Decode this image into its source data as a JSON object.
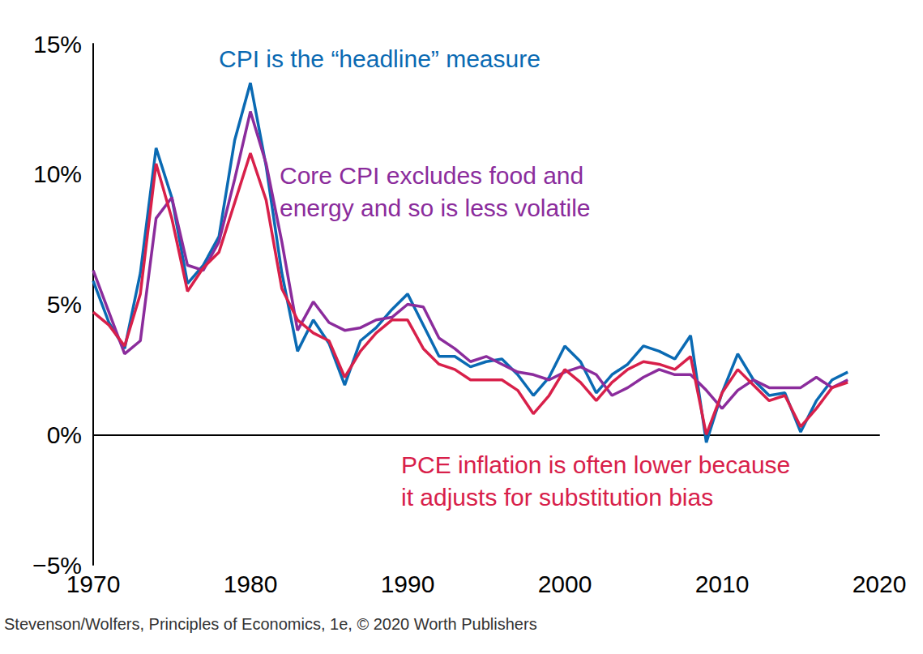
{
  "chart_data": {
    "type": "line",
    "x": [
      1970,
      1971,
      1972,
      1973,
      1974,
      1975,
      1976,
      1977,
      1978,
      1979,
      1980,
      1981,
      1982,
      1983,
      1984,
      1985,
      1986,
      1987,
      1988,
      1989,
      1990,
      1991,
      1992,
      1993,
      1994,
      1995,
      1996,
      1997,
      1998,
      1999,
      2000,
      2001,
      2002,
      2003,
      2004,
      2005,
      2006,
      2007,
      2008,
      2009,
      2010,
      2011,
      2012,
      2013,
      2014,
      2015,
      2016,
      2017,
      2018
    ],
    "series": [
      {
        "color": "#0a6ab3",
        "values": [
          5.9,
          4.3,
          3.3,
          6.2,
          11.0,
          9.1,
          5.8,
          6.5,
          7.6,
          11.3,
          13.5,
          10.3,
          6.2,
          3.2,
          4.4,
          3.5,
          1.9,
          3.6,
          4.1,
          4.8,
          5.4,
          4.2,
          3.0,
          3.0,
          2.6,
          2.8,
          2.9,
          2.3,
          1.5,
          2.2,
          3.4,
          2.8,
          1.6,
          2.3,
          2.7,
          3.4,
          3.2,
          2.9,
          3.8,
          -0.3,
          1.6,
          3.1,
          2.1,
          1.5,
          1.6,
          0.1,
          1.3,
          2.1,
          2.4
        ]
      },
      {
        "color": "#8b2c9c",
        "values": [
          6.3,
          4.7,
          3.1,
          3.6,
          8.3,
          9.1,
          6.5,
          6.3,
          7.4,
          9.8,
          12.4,
          10.4,
          7.4,
          4.0,
          5.1,
          4.3,
          4.0,
          4.1,
          4.4,
          4.5,
          5.0,
          4.9,
          3.7,
          3.3,
          2.8,
          3.0,
          2.7,
          2.4,
          2.3,
          2.1,
          2.4,
          2.6,
          2.3,
          1.5,
          1.8,
          2.2,
          2.5,
          2.3,
          2.3,
          1.7,
          1.0,
          1.7,
          2.1,
          1.8,
          1.8,
          1.8,
          2.2,
          1.8,
          2.1
        ]
      },
      {
        "color": "#d8204a",
        "values": [
          4.7,
          4.2,
          3.4,
          5.4,
          10.4,
          8.3,
          5.5,
          6.4,
          7.0,
          8.9,
          10.8,
          9.0,
          5.6,
          4.4,
          3.9,
          3.6,
          2.2,
          3.2,
          3.9,
          4.4,
          4.4,
          3.3,
          2.7,
          2.5,
          2.1,
          2.1,
          2.1,
          1.7,
          0.8,
          1.5,
          2.5,
          2.0,
          1.3,
          2.0,
          2.5,
          2.8,
          2.7,
          2.5,
          3.0,
          0.0,
          1.6,
          2.5,
          1.9,
          1.3,
          1.5,
          0.3,
          1.0,
          1.8,
          2.0
        ]
      }
    ],
    "xlim": [
      1970,
      2020
    ],
    "xticks": [
      1970,
      1980,
      1990,
      2000,
      2010,
      2020
    ],
    "ylim": [
      -5,
      15
    ],
    "yticks": [
      {
        "value": -5,
        "label": "−5%"
      },
      {
        "value": 0,
        "label": "0%"
      },
      {
        "value": 5,
        "label": "5%"
      },
      {
        "value": 10,
        "label": "10%"
      },
      {
        "value": 15,
        "label": "15%"
      }
    ],
    "grid": false,
    "annotations": [
      {
        "text": "CPI is the “headline” measure",
        "color": "#0a6ab3"
      },
      {
        "text": "Core CPI excludes food and\nenergy and so is less volatile",
        "color": "#8b2c9c"
      },
      {
        "text": "PCE inflation is often lower because\nit adjusts for substitution bias",
        "color": "#d8204a"
      }
    ],
    "source": "Stevenson/Wolfers, Principles of Economics, 1e, © 2020 Worth Publishers"
  }
}
